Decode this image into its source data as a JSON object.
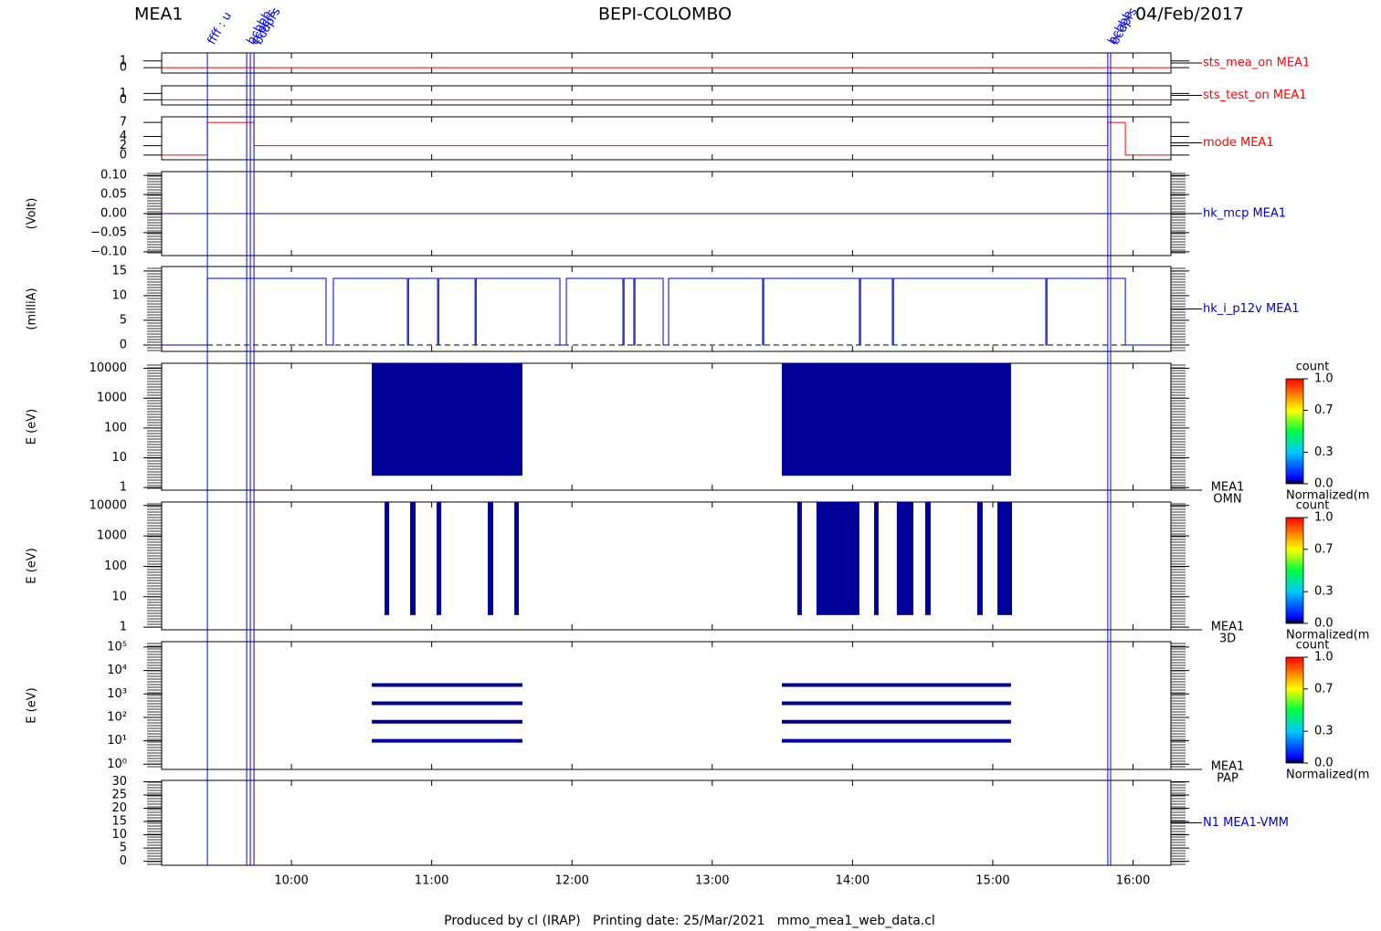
{
  "header": {
    "instrument": "MEA1",
    "title": "BEPI-COLOMBO",
    "date": "04/Feb/2017"
  },
  "footer": "Produced by cl (IRAP)   Printing date: 25/Mar/2021   mmo_mea1_web_data.cl",
  "time_axis": {
    "xlim": [
      9.075,
      16.27
    ],
    "xticks": [
      {
        "value": 10,
        "label": "10:00"
      },
      {
        "value": 11,
        "label": "11:00"
      },
      {
        "value": 12,
        "label": "12:00"
      },
      {
        "value": 13,
        "label": "13:00"
      },
      {
        "value": 14,
        "label": "14:00"
      },
      {
        "value": 15,
        "label": "15:00"
      },
      {
        "value": 16,
        "label": "16:00"
      }
    ]
  },
  "events": [
    {
      "x": 9.401,
      "label": "ffff : u"
    },
    {
      "x": 9.681,
      "label": "bcbbb"
    },
    {
      "x": 9.707,
      "label": "ccpcrs"
    },
    {
      "x": 9.733,
      "label": "bcdprs"
    },
    {
      "x": 15.82,
      "label": "bcbbb"
    },
    {
      "x": 15.84,
      "label": "bcdprs"
    }
  ],
  "chart_data": [
    {
      "type": "line",
      "name": "sts_mea_on MEA1",
      "color": "#ff0000",
      "ylim": [
        -0.8,
        2.2
      ],
      "yticks": [
        0,
        1
      ],
      "x": [
        9.075,
        16.27
      ],
      "values": [
        0,
        0
      ]
    },
    {
      "type": "line",
      "name": "sts_test_on MEA1",
      "color": "#ff0000",
      "ylim": [
        -0.8,
        2.2
      ],
      "yticks": [
        0,
        1
      ],
      "x": [
        9.075,
        16.27
      ],
      "values": [
        0,
        0
      ]
    },
    {
      "type": "line",
      "name": "mode MEA1",
      "color": "#ff0000",
      "ylim": [
        -1,
        8.2
      ],
      "yticks": [
        0,
        2,
        4,
        7
      ],
      "x": [
        9.075,
        9.401,
        9.401,
        9.733,
        9.733,
        15.82,
        15.82,
        15.945,
        15.945,
        16.27
      ],
      "values": [
        0,
        0,
        7,
        7,
        2,
        2,
        7,
        7,
        0,
        0
      ]
    },
    {
      "type": "line",
      "name": "hk_mcp MEA1",
      "ylabel": "(Volt)",
      "color": "#0000c0",
      "ylim": [
        -0.11,
        0.11
      ],
      "yticks": [
        {
          "value": 0.1,
          "label": "0.10"
        },
        {
          "value": 0.05,
          "label": "0.05"
        },
        {
          "value": 0,
          "label": "0.00"
        },
        {
          "value": -0.05,
          "label": "−0.05"
        },
        {
          "value": -0.1,
          "label": "−0.10"
        }
      ],
      "x": [
        9.075,
        16.27
      ],
      "values": [
        0,
        0
      ]
    },
    {
      "type": "line",
      "name": "hk_i_p12v MEA1",
      "ylabel": "(milliA)",
      "color": "#0000c0",
      "ylim": [
        -1.3,
        15.9
      ],
      "yticks": [
        0,
        5,
        10,
        15
      ],
      "reference": 0,
      "x": [
        9.075,
        9.401,
        9.401,
        10.247,
        10.247,
        10.299,
        10.299,
        10.827,
        10.827,
        10.835,
        10.835,
        11.042,
        11.042,
        11.05,
        11.05,
        11.309,
        11.309,
        11.317,
        11.317,
        11.914,
        11.914,
        11.96,
        11.96,
        12.363,
        12.363,
        12.371,
        12.371,
        12.441,
        12.441,
        12.449,
        12.449,
        12.65,
        12.65,
        12.689,
        12.689,
        13.359,
        13.359,
        13.367,
        13.367,
        14.049,
        14.049,
        14.057,
        14.057,
        14.284,
        14.284,
        14.292,
        14.292,
        15.378,
        15.378,
        15.386,
        15.386,
        15.945,
        15.945,
        16.27
      ],
      "values": [
        0,
        0,
        13.5,
        13.5,
        0,
        0,
        13.5,
        13.5,
        0,
        0,
        13.5,
        13.5,
        0,
        0,
        13.5,
        13.5,
        0,
        0,
        13.5,
        13.5,
        0,
        0,
        13.5,
        13.5,
        0,
        0,
        13.5,
        13.5,
        0,
        0,
        13.5,
        13.5,
        0,
        0,
        13.5,
        13.5,
        0,
        0,
        13.5,
        13.5,
        0,
        0,
        13.5,
        13.5,
        0,
        0,
        13.5,
        13.5,
        0,
        0,
        13.5,
        13.5,
        0,
        0
      ]
    },
    {
      "type": "spectrogram",
      "name": "MEA1",
      "subname": "OMN",
      "ylabel": "E (eV)",
      "log": true,
      "color": "#000099",
      "ylim": [
        0.82,
        14800
      ],
      "yticks": [
        1,
        10,
        100,
        1000,
        10000
      ],
      "blocks": [
        {
          "x": [
            10.573,
            11.647
          ],
          "values": [
            2.5,
            14800
          ]
        },
        {
          "x": [
            13.496,
            15.13
          ],
          "values": [
            2.5,
            14800
          ]
        }
      ],
      "colorbar": {
        "title": "count",
        "label": "Normalized(m",
        "clim": [
          0,
          1
        ],
        "ticks": [
          {
            "value": 1,
            "label": "1.0"
          },
          0.7,
          0.3,
          {
            "value": 0,
            "label": "0.0"
          }
        ]
      }
    },
    {
      "type": "spectrogram",
      "name": "MEA1",
      "subname": "3D",
      "ylabel": "E (eV)",
      "log": true,
      "color": "#000099",
      "ylim": [
        0.82,
        13000
      ],
      "yticks": [
        1,
        10,
        100,
        1000,
        10000
      ],
      "blocks": [
        {
          "x": [
            10.664,
            10.697
          ],
          "values": [
            2.5,
            13000
          ]
        },
        {
          "x": [
            10.846,
            10.885
          ],
          "values": [
            2.5,
            13000
          ]
        },
        {
          "x": [
            11.035,
            11.068
          ],
          "values": [
            2.5,
            13000
          ]
        },
        {
          "x": [
            11.4,
            11.439
          ],
          "values": [
            2.5,
            13000
          ]
        },
        {
          "x": [
            11.589,
            11.621
          ],
          "values": [
            2.5,
            13000
          ]
        },
        {
          "x": [
            13.607,
            13.639
          ],
          "values": [
            2.5,
            13000
          ]
        },
        {
          "x": [
            13.743,
            14.049
          ],
          "values": [
            2.5,
            13000
          ]
        },
        {
          "x": [
            14.154,
            14.186
          ],
          "values": [
            2.5,
            13000
          ]
        },
        {
          "x": [
            14.316,
            14.434
          ],
          "values": [
            2.5,
            13000
          ]
        },
        {
          "x": [
            14.518,
            14.557
          ],
          "values": [
            2.5,
            13000
          ]
        },
        {
          "x": [
            14.889,
            14.928
          ],
          "values": [
            2.5,
            13000
          ]
        },
        {
          "x": [
            15.033,
            15.137
          ],
          "values": [
            2.5,
            13000
          ]
        }
      ],
      "colorbar": {
        "title": "count",
        "label": "Normalized(m",
        "clim": [
          0,
          1
        ],
        "ticks": [
          {
            "value": 1,
            "label": "1.0"
          },
          0.7,
          0.3,
          {
            "value": 0,
            "label": "0.0"
          }
        ]
      }
    },
    {
      "type": "segments",
      "name": "MEA1",
      "subname": "PAP",
      "ylabel": "E (eV)",
      "log": true,
      "color": "#000099",
      "ylim": [
        0.6,
        170000
      ],
      "yticks": [
        {
          "value": 1,
          "label": "10⁰"
        },
        {
          "value": 10,
          "label": "10¹"
        },
        {
          "value": 100,
          "label": "10²"
        },
        {
          "value": 1000,
          "label": "10³"
        },
        {
          "value": 10000,
          "label": "10⁴"
        },
        {
          "value": 100000,
          "label": "10⁵"
        }
      ],
      "segments": [
        {
          "x": [
            10.573,
            11.647
          ],
          "value": 2400
        },
        {
          "x": [
            10.573,
            11.647
          ],
          "value": 400
        },
        {
          "x": [
            10.573,
            11.647
          ],
          "value": 65
        },
        {
          "x": [
            10.573,
            11.647
          ],
          "value": 10
        },
        {
          "x": [
            13.496,
            15.13
          ],
          "value": 2400
        },
        {
          "x": [
            13.496,
            15.13
          ],
          "value": 400
        },
        {
          "x": [
            13.496,
            15.13
          ],
          "value": 65
        },
        {
          "x": [
            13.496,
            15.13
          ],
          "value": 10
        }
      ],
      "colorbar": {
        "title": "count",
        "label": "Normalized(m",
        "clim": [
          0,
          1
        ],
        "ticks": [
          {
            "value": 1,
            "label": "1.0"
          },
          0.7,
          0.3,
          {
            "value": 0,
            "label": "0.0"
          }
        ]
      }
    },
    {
      "type": "line",
      "name": "N1 MEA1-VMM",
      "color": "#0000c0",
      "ylim": [
        -1.5,
        30.5
      ],
      "yticks": [
        0,
        5,
        10,
        15,
        20,
        25,
        30
      ],
      "x": [],
      "values": []
    }
  ]
}
